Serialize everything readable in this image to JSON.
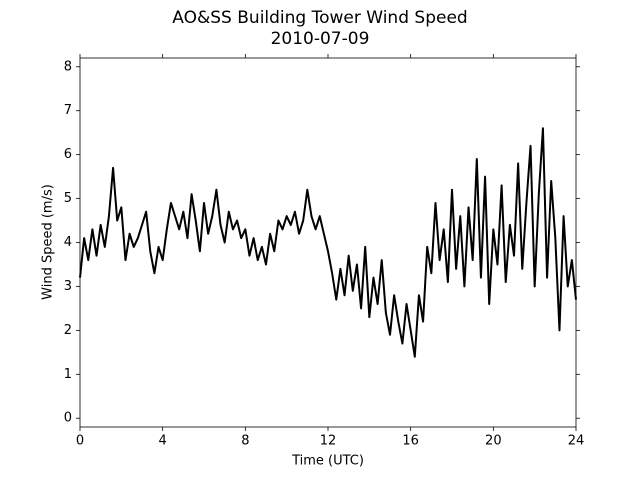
{
  "chart_data": {
    "type": "line",
    "title": "AO&SS Building Tower Wind Speed",
    "subtitle": "2010-07-09",
    "x_label": "Time (UTC)",
    "y_label": "Wind Speed (m/s)",
    "color": "#000000",
    "xlim": [
      0,
      24
    ],
    "xticks": [
      0,
      4,
      8,
      12,
      16,
      20,
      24
    ],
    "ylim": [
      -0.2,
      8.2
    ],
    "yticks": [
      0,
      1,
      2,
      3,
      4,
      5,
      6,
      7,
      8
    ],
    "x": [
      0.0,
      0.2,
      0.4,
      0.6,
      0.8,
      1.0,
      1.2,
      1.4,
      1.6,
      1.8,
      2.0,
      2.2,
      2.4,
      2.6,
      2.8,
      3.0,
      3.2,
      3.4,
      3.6,
      3.8,
      4.0,
      4.2,
      4.4,
      4.6,
      4.8,
      5.0,
      5.2,
      5.4,
      5.6,
      5.8,
      6.0,
      6.2,
      6.4,
      6.6,
      6.8,
      7.0,
      7.2,
      7.4,
      7.6,
      7.8,
      8.0,
      8.2,
      8.4,
      8.6,
      8.8,
      9.0,
      9.2,
      9.4,
      9.6,
      9.8,
      10.0,
      10.2,
      10.4,
      10.6,
      10.8,
      11.0,
      11.2,
      11.4,
      11.6,
      11.8,
      12.0,
      12.2,
      12.4,
      12.6,
      12.8,
      13.0,
      13.2,
      13.4,
      13.6,
      13.8,
      14.0,
      14.2,
      14.4,
      14.6,
      14.8,
      15.0,
      15.2,
      15.4,
      15.6,
      15.8,
      16.0,
      16.2,
      16.4,
      16.6,
      16.8,
      17.0,
      17.2,
      17.4,
      17.6,
      17.8,
      18.0,
      18.2,
      18.4,
      18.6,
      18.8,
      19.0,
      19.2,
      19.4,
      19.6,
      19.8,
      20.0,
      20.2,
      20.4,
      20.6,
      20.8,
      21.0,
      21.2,
      21.4,
      21.6,
      21.8,
      22.0,
      22.2,
      22.4,
      22.6,
      22.8,
      23.0,
      23.2,
      23.4,
      23.6,
      23.8,
      24.0
    ],
    "values": [
      3.2,
      4.1,
      3.6,
      4.3,
      3.7,
      4.4,
      3.9,
      4.6,
      5.7,
      4.5,
      4.8,
      3.6,
      4.2,
      3.9,
      4.1,
      4.4,
      4.7,
      3.8,
      3.3,
      3.9,
      3.6,
      4.3,
      4.9,
      4.6,
      4.3,
      4.7,
      4.1,
      5.1,
      4.5,
      3.8,
      4.9,
      4.2,
      4.6,
      5.2,
      4.4,
      4.0,
      4.7,
      4.3,
      4.5,
      4.1,
      4.3,
      3.7,
      4.1,
      3.6,
      3.9,
      3.5,
      4.2,
      3.8,
      4.5,
      4.3,
      4.6,
      4.4,
      4.7,
      4.2,
      4.5,
      5.2,
      4.6,
      4.3,
      4.6,
      4.2,
      3.8,
      3.3,
      2.7,
      3.4,
      2.8,
      3.7,
      2.9,
      3.5,
      2.5,
      3.9,
      2.3,
      3.2,
      2.6,
      3.6,
      2.4,
      1.9,
      2.8,
      2.2,
      1.7,
      2.6,
      2.0,
      1.4,
      2.8,
      2.2,
      3.9,
      3.3,
      4.9,
      3.6,
      4.3,
      3.1,
      5.2,
      3.4,
      4.6,
      3.0,
      4.8,
      3.6,
      5.9,
      3.2,
      5.5,
      2.6,
      4.3,
      3.5,
      5.3,
      3.1,
      4.4,
      3.7,
      5.8,
      3.4,
      4.9,
      6.2,
      3.0,
      5.1,
      6.6,
      3.2,
      5.4,
      4.1,
      2.0,
      4.6,
      3.0,
      3.6,
      2.7
    ]
  }
}
